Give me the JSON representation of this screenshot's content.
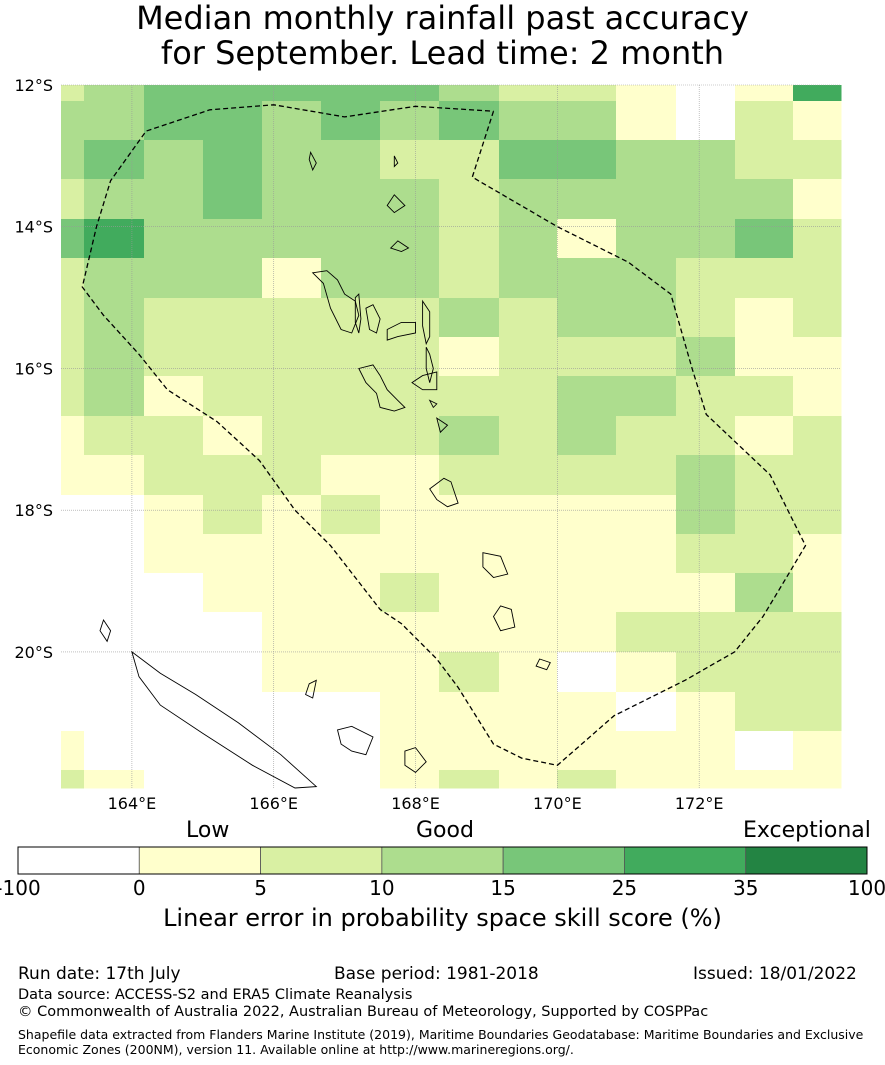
{
  "title": {
    "line1": "Median monthly rainfall past accuracy",
    "line2": "for September. Lead time: 2 month"
  },
  "map": {
    "lon_range": [
      163,
      174
    ],
    "lat_range": [
      -21.92,
      -12
    ],
    "lat_ticks": [
      {
        "lat": -12,
        "label": "12°S"
      },
      {
        "lat": -14,
        "label": "14°S"
      },
      {
        "lat": -16,
        "label": "16°S"
      },
      {
        "lat": -18,
        "label": "18°S"
      },
      {
        "lat": -20,
        "label": "20°S"
      }
    ],
    "lon_ticks": [
      {
        "lon": 164,
        "label": "164°E"
      },
      {
        "lon": 166,
        "label": "166°E"
      },
      {
        "lon": 168,
        "label": "168°E"
      },
      {
        "lon": 170,
        "label": "170°E"
      },
      {
        "lon": 172,
        "label": "172°E"
      }
    ],
    "grid_cols_lon": [
      163,
      163.33,
      164.17,
      165,
      165.83,
      166.67,
      167.5,
      168.33,
      169.17,
      170,
      170.83,
      171.67,
      172.5,
      173.33,
      174
    ],
    "grid_rows_lat": [
      -12,
      -12.22,
      -12.78,
      -13.33,
      -13.89,
      -14.44,
      -15,
      -15.56,
      -16.11,
      -16.67,
      -17.22,
      -17.78,
      -18.33,
      -18.89,
      -19.44,
      -20,
      -20.56,
      -21.11,
      -21.67,
      -21.92
    ],
    "skill_grid": [
      [
        2,
        3,
        4,
        4,
        4,
        4,
        4,
        3,
        2,
        2,
        1,
        0,
        1,
        5
      ],
      [
        3,
        3,
        4,
        4,
        3,
        4,
        3,
        4,
        3,
        3,
        1,
        0,
        2,
        1
      ],
      [
        3,
        4,
        3,
        4,
        3,
        3,
        2,
        2,
        4,
        4,
        3,
        3,
        2,
        2
      ],
      [
        2,
        3,
        3,
        4,
        3,
        3,
        3,
        2,
        3,
        3,
        3,
        3,
        3,
        1
      ],
      [
        4,
        5,
        3,
        3,
        3,
        3,
        3,
        2,
        3,
        1,
        3,
        3,
        4,
        2
      ],
      [
        2,
        3,
        3,
        3,
        1,
        3,
        3,
        2,
        3,
        3,
        3,
        2,
        2,
        2
      ],
      [
        2,
        3,
        2,
        2,
        2,
        2,
        2,
        3,
        2,
        3,
        3,
        2,
        1,
        2
      ],
      [
        2,
        3,
        2,
        2,
        2,
        2,
        2,
        1,
        2,
        2,
        2,
        3,
        1,
        1
      ],
      [
        2,
        3,
        1,
        2,
        2,
        2,
        2,
        2,
        2,
        3,
        3,
        2,
        2,
        1
      ],
      [
        1,
        2,
        2,
        1,
        2,
        2,
        2,
        3,
        2,
        3,
        2,
        2,
        1,
        2
      ],
      [
        1,
        1,
        2,
        2,
        2,
        1,
        1,
        2,
        2,
        2,
        2,
        3,
        2,
        2
      ],
      [
        0,
        0,
        1,
        2,
        1,
        2,
        1,
        1,
        1,
        1,
        1,
        3,
        2,
        2
      ],
      [
        0,
        0,
        1,
        1,
        1,
        1,
        1,
        1,
        1,
        1,
        1,
        2,
        2,
        1
      ],
      [
        0,
        0,
        0,
        1,
        1,
        1,
        2,
        1,
        1,
        1,
        1,
        1,
        3,
        1
      ],
      [
        0,
        0,
        0,
        0,
        1,
        1,
        1,
        1,
        1,
        1,
        2,
        2,
        2,
        2
      ],
      [
        0,
        0,
        0,
        0,
        1,
        1,
        1,
        2,
        1,
        0,
        1,
        2,
        2,
        2
      ],
      [
        0,
        0,
        0,
        0,
        0,
        0,
        1,
        1,
        1,
        1,
        0,
        1,
        2,
        2
      ],
      [
        1,
        0,
        0,
        0,
        0,
        0,
        1,
        1,
        1,
        1,
        1,
        1,
        0,
        1
      ],
      [
        2,
        1,
        0,
        0,
        0,
        0,
        1,
        2,
        1,
        2,
        1,
        1,
        1,
        1
      ]
    ],
    "eez_boundary": [
      [
        169.1,
        -12.37
      ],
      [
        168.8,
        -13.3
      ],
      [
        170,
        -14
      ],
      [
        171,
        -14.5
      ],
      [
        171.6,
        -14.95
      ],
      [
        171.9,
        -16
      ],
      [
        172.1,
        -16.65
      ],
      [
        173.0,
        -17.5
      ],
      [
        173.5,
        -18.5
      ],
      [
        173.2,
        -19.0
      ],
      [
        172.9,
        -19.5
      ],
      [
        172.5,
        -20.0
      ],
      [
        171.8,
        -20.4
      ],
      [
        170.8,
        -20.9
      ],
      [
        170,
        -21.6
      ],
      [
        169.5,
        -21.5
      ],
      [
        169.1,
        -21.3
      ],
      [
        168.6,
        -20.5
      ],
      [
        168.3,
        -20.1
      ],
      [
        167.8,
        -19.6
      ],
      [
        167.5,
        -19.4
      ],
      [
        166.8,
        -18.5
      ],
      [
        166.3,
        -18.0
      ],
      [
        165.8,
        -17.3
      ],
      [
        165.2,
        -16.75
      ],
      [
        164.5,
        -16.3
      ],
      [
        164.1,
        -15.8
      ],
      [
        163.6,
        -15.25
      ],
      [
        163.3,
        -14.85
      ],
      [
        163.5,
        -14.0
      ],
      [
        163.7,
        -13.35
      ],
      [
        164.2,
        -12.65
      ],
      [
        165.1,
        -12.35
      ],
      [
        166,
        -12.28
      ],
      [
        167,
        -12.45
      ],
      [
        168,
        -12.3
      ],
      [
        169.1,
        -12.37
      ]
    ],
    "islands": [
      [
        [
          166.55,
          -14.65
        ],
        [
          166.7,
          -14.8
        ],
        [
          166.8,
          -15.15
        ],
        [
          166.95,
          -15.45
        ],
        [
          167.1,
          -15.5
        ],
        [
          167.2,
          -15.25
        ],
        [
          167.15,
          -15.05
        ],
        [
          167.0,
          -14.95
        ],
        [
          166.9,
          -14.75
        ],
        [
          166.75,
          -14.62
        ]
      ],
      [
        [
          167.15,
          -15.0
        ],
        [
          167.2,
          -14.95
        ],
        [
          167.23,
          -15.3
        ],
        [
          167.2,
          -15.5
        ],
        [
          167.15,
          -15.35
        ]
      ],
      [
        [
          167.3,
          -15.15
        ],
        [
          167.4,
          -15.1
        ],
        [
          167.5,
          -15.3
        ],
        [
          167.45,
          -15.5
        ],
        [
          167.35,
          -15.45
        ]
      ],
      [
        [
          167.6,
          -15.45
        ],
        [
          167.8,
          -15.35
        ],
        [
          168.0,
          -15.35
        ],
        [
          168.0,
          -15.5
        ],
        [
          167.75,
          -15.55
        ],
        [
          167.6,
          -15.6
        ]
      ],
      [
        [
          168.1,
          -15.05
        ],
        [
          168.2,
          -15.2
        ],
        [
          168.2,
          -15.55
        ],
        [
          168.15,
          -15.65
        ],
        [
          168.1,
          -15.4
        ]
      ],
      [
        [
          168.15,
          -15.7
        ],
        [
          168.2,
          -15.8
        ],
        [
          168.25,
          -16.0
        ],
        [
          168.2,
          -16.2
        ],
        [
          168.15,
          -16.0
        ]
      ],
      [
        [
          167.2,
          -16.0
        ],
        [
          167.4,
          -15.95
        ],
        [
          167.5,
          -16.1
        ],
        [
          167.6,
          -16.3
        ],
        [
          167.75,
          -16.45
        ],
        [
          167.85,
          -16.55
        ],
        [
          167.7,
          -16.6
        ],
        [
          167.5,
          -16.55
        ],
        [
          167.45,
          -16.35
        ],
        [
          167.3,
          -16.2
        ]
      ],
      [
        [
          168.1,
          -16.1
        ],
        [
          168.3,
          -16.05
        ],
        [
          168.3,
          -16.3
        ],
        [
          168.1,
          -16.3
        ],
        [
          167.95,
          -16.2
        ]
      ],
      [
        [
          168.2,
          -16.45
        ],
        [
          168.3,
          -16.5
        ],
        [
          168.25,
          -16.55
        ]
      ],
      [
        [
          168.3,
          -16.7
        ],
        [
          168.45,
          -16.8
        ],
        [
          168.35,
          -16.9
        ]
      ],
      [
        [
          168.4,
          -17.55
        ],
        [
          168.5,
          -17.6
        ],
        [
          168.55,
          -17.75
        ],
        [
          168.6,
          -17.9
        ],
        [
          168.45,
          -17.95
        ],
        [
          168.3,
          -17.85
        ],
        [
          168.2,
          -17.7
        ]
      ],
      [
        [
          168.95,
          -18.6
        ],
        [
          169.2,
          -18.65
        ],
        [
          169.3,
          -18.9
        ],
        [
          169.1,
          -18.95
        ],
        [
          168.95,
          -18.8
        ]
      ],
      [
        [
          169.2,
          -19.35
        ],
        [
          169.35,
          -19.4
        ],
        [
          169.4,
          -19.65
        ],
        [
          169.2,
          -19.7
        ],
        [
          169.1,
          -19.5
        ]
      ],
      [
        [
          169.75,
          -20.1
        ],
        [
          169.9,
          -20.15
        ],
        [
          169.85,
          -20.25
        ],
        [
          169.7,
          -20.2
        ]
      ],
      [
        [
          167.7,
          -13.0
        ],
        [
          167.75,
          -13.1
        ],
        [
          167.7,
          -13.15
        ]
      ],
      [
        [
          167.7,
          -13.55
        ],
        [
          167.85,
          -13.7
        ],
        [
          167.7,
          -13.8
        ],
        [
          167.6,
          -13.7
        ]
      ],
      [
        [
          167.75,
          -14.2
        ],
        [
          167.9,
          -14.3
        ],
        [
          167.8,
          -14.35
        ],
        [
          167.65,
          -14.3
        ]
      ],
      [
        [
          166.52,
          -12.95
        ],
        [
          166.6,
          -13.1
        ],
        [
          166.55,
          -13.2
        ],
        [
          166.5,
          -13.05
        ]
      ],
      [
        [
          166.9,
          -21.1
        ],
        [
          167.1,
          -21.05
        ],
        [
          167.4,
          -21.2
        ],
        [
          167.3,
          -21.45
        ],
        [
          167.1,
          -21.4
        ],
        [
          166.95,
          -21.3
        ]
      ],
      [
        [
          167.85,
          -21.4
        ],
        [
          168.0,
          -21.35
        ],
        [
          168.15,
          -21.55
        ],
        [
          168.0,
          -21.7
        ],
        [
          167.85,
          -21.6
        ]
      ],
      [
        [
          164.0,
          -20.0
        ],
        [
          164.4,
          -20.3
        ],
        [
          164.9,
          -20.6
        ],
        [
          165.5,
          -21.0
        ],
        [
          166.1,
          -21.45
        ],
        [
          166.6,
          -21.9
        ],
        [
          166.3,
          -21.92
        ],
        [
          165.7,
          -21.6
        ],
        [
          165.0,
          -21.15
        ],
        [
          164.4,
          -20.75
        ],
        [
          164.1,
          -20.35
        ]
      ],
      [
        [
          166.5,
          -20.45
        ],
        [
          166.6,
          -20.4
        ],
        [
          166.55,
          -20.65
        ],
        [
          166.45,
          -20.6
        ]
      ],
      [
        [
          163.6,
          -19.55
        ],
        [
          163.7,
          -19.7
        ],
        [
          163.65,
          -19.85
        ],
        [
          163.55,
          -19.7
        ]
      ]
    ]
  },
  "colorbar": {
    "bins": [
      {
        "from": "-100",
        "to": "0",
        "color": "#ffffff"
      },
      {
        "from": "0",
        "to": "5",
        "color": "#ffffcc"
      },
      {
        "from": "5",
        "to": "10",
        "color": "#d9f0a3"
      },
      {
        "from": "10",
        "to": "15",
        "color": "#addd8e"
      },
      {
        "from": "15",
        "to": "25",
        "color": "#78c679"
      },
      {
        "from": "25",
        "to": "35",
        "color": "#41ab5d"
      },
      {
        "from": "35",
        "to": "100",
        "color": "#238443"
      }
    ],
    "ticks": [
      "-100",
      "0",
      "5",
      "10",
      "15",
      "25",
      "35",
      "100"
    ],
    "categories": {
      "low": "Low",
      "good": "Good",
      "exceptional": "Exceptional"
    },
    "label": "Linear error in probability space skill score (%)"
  },
  "footer": {
    "run_date": "Run date: 17th July",
    "base_period": "Base period: 1981-2018",
    "issued": "Issued: 18/01/2022",
    "data_source": "Data source: ACCESS-S2 and ERA5 Climate Reanalysis",
    "copyright": "© Commonwealth of Australia 2022, Australian Bureau of Meteorology, Supported by COSPPac",
    "shapefile_line1": "Shapefile data extracted from Flanders Marine Institute (2019), Maritime Boundaries Geodatabase: Maritime Boundaries and Exclusive",
    "shapefile_line2": "Economic Zones (200NM), version 11. Available online at http://www.marineregions.org/."
  }
}
